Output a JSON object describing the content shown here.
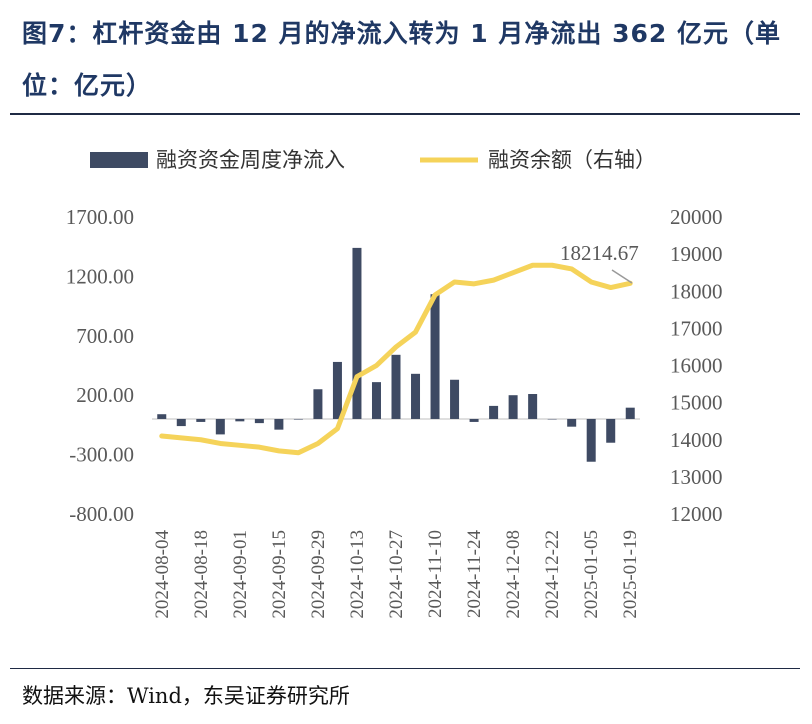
{
  "title": "图7：杠杆资金由 12 月的净流入转为 1 月净流出 362 亿元（单位：亿元）",
  "source": "数据来源：Wind，东吴证券研究所",
  "colors": {
    "bar": "#3e4a63",
    "line": "#f5d35a",
    "title": "#1f3864"
  },
  "chart_data": {
    "type": "bar+line",
    "legend": {
      "placement": "top",
      "bar_label": "融资资金周度净流入",
      "line_label": "融资余额（右轴）"
    },
    "y_left": {
      "ylim": [
        -800,
        1700
      ],
      "ticks": [
        "1700.00",
        "1200.00",
        "700.00",
        "200.00",
        "-300.00",
        "-800.00"
      ],
      "tick_values": [
        1700,
        1200,
        700,
        200,
        -300,
        -800
      ]
    },
    "y_right": {
      "ylim": [
        12000,
        20000
      ],
      "ticks": [
        "20000",
        "19000",
        "18000",
        "17000",
        "16000",
        "15000",
        "14000",
        "13000",
        "12000"
      ],
      "tick_values": [
        20000,
        19000,
        18000,
        17000,
        16000,
        15000,
        14000,
        13000,
        12000
      ]
    },
    "x_tick_labels": [
      "2024-08-04",
      "2024-08-18",
      "2024-09-01",
      "2024-09-15",
      "2024-09-29",
      "2024-10-13",
      "2024-10-27",
      "2024-11-10",
      "2024-11-24",
      "2024-12-08",
      "2024-12-22",
      "2025-01-05",
      "2025-01-19"
    ],
    "series": [
      {
        "name": "融资资金周度净流入",
        "kind": "bar",
        "values": [
          40,
          -60,
          -25,
          -130,
          -20,
          -35,
          -90,
          -5,
          250,
          480,
          1440,
          310,
          540,
          380,
          1050,
          330,
          -25,
          110,
          200,
          210,
          0,
          -65,
          -360,
          -200,
          95
        ]
      },
      {
        "name": "融资余额（右轴）",
        "kind": "line",
        "values": [
          14100,
          14050,
          14000,
          13900,
          13850,
          13800,
          13700,
          13650,
          13900,
          14300,
          15700,
          16000,
          16500,
          16900,
          17900,
          18250,
          18200,
          18300,
          18500,
          18700,
          18700,
          18600,
          18250,
          18100,
          18214.67
        ]
      }
    ],
    "annotation": "18214.67"
  }
}
